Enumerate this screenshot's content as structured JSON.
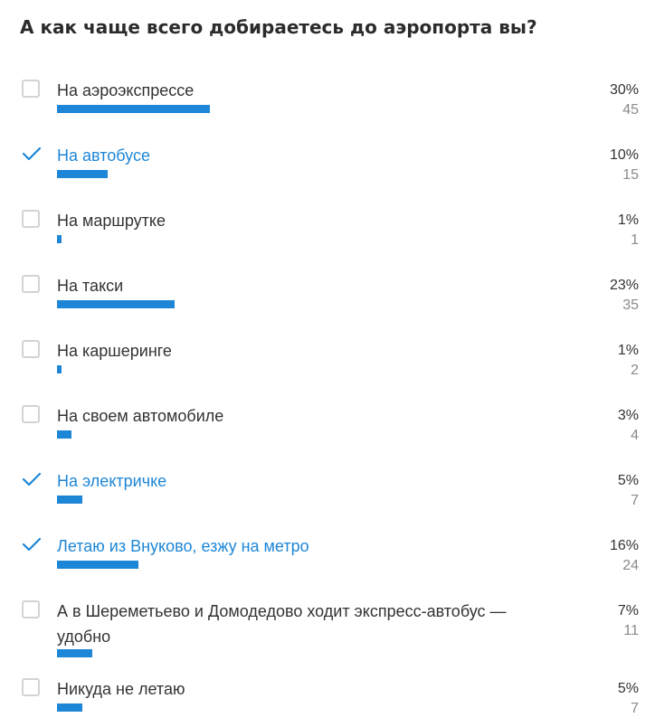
{
  "poll": {
    "title": "А как чаще всего добираетесь до аэропорта вы?",
    "accent_color": "#1e86d6",
    "options": [
      {
        "label": "На аэроэкспрессе",
        "percent": "30%",
        "votes": "45",
        "voted": false
      },
      {
        "label": "На автобусе",
        "percent": "10%",
        "votes": "15",
        "voted": true
      },
      {
        "label": "На маршрутке",
        "percent": "1%",
        "votes": "1",
        "voted": false
      },
      {
        "label": "На такси",
        "percent": "23%",
        "votes": "35",
        "voted": false
      },
      {
        "label": "На каршеринге",
        "percent": "1%",
        "votes": "2",
        "voted": false
      },
      {
        "label": "На своем автомобиле",
        "percent": "3%",
        "votes": "4",
        "voted": false
      },
      {
        "label": "На электричке",
        "percent": "5%",
        "votes": "7",
        "voted": true
      },
      {
        "label": "Летаю из Внуково, езжу на метро",
        "percent": "16%",
        "votes": "24",
        "voted": true
      },
      {
        "label": "А в Шереметьево и Домодедово ходит экспресс-автобус — удобно",
        "percent": "7%",
        "votes": "11",
        "voted": false
      },
      {
        "label": "Никуда не летаю",
        "percent": "5%",
        "votes": "7",
        "voted": false
      }
    ]
  }
}
